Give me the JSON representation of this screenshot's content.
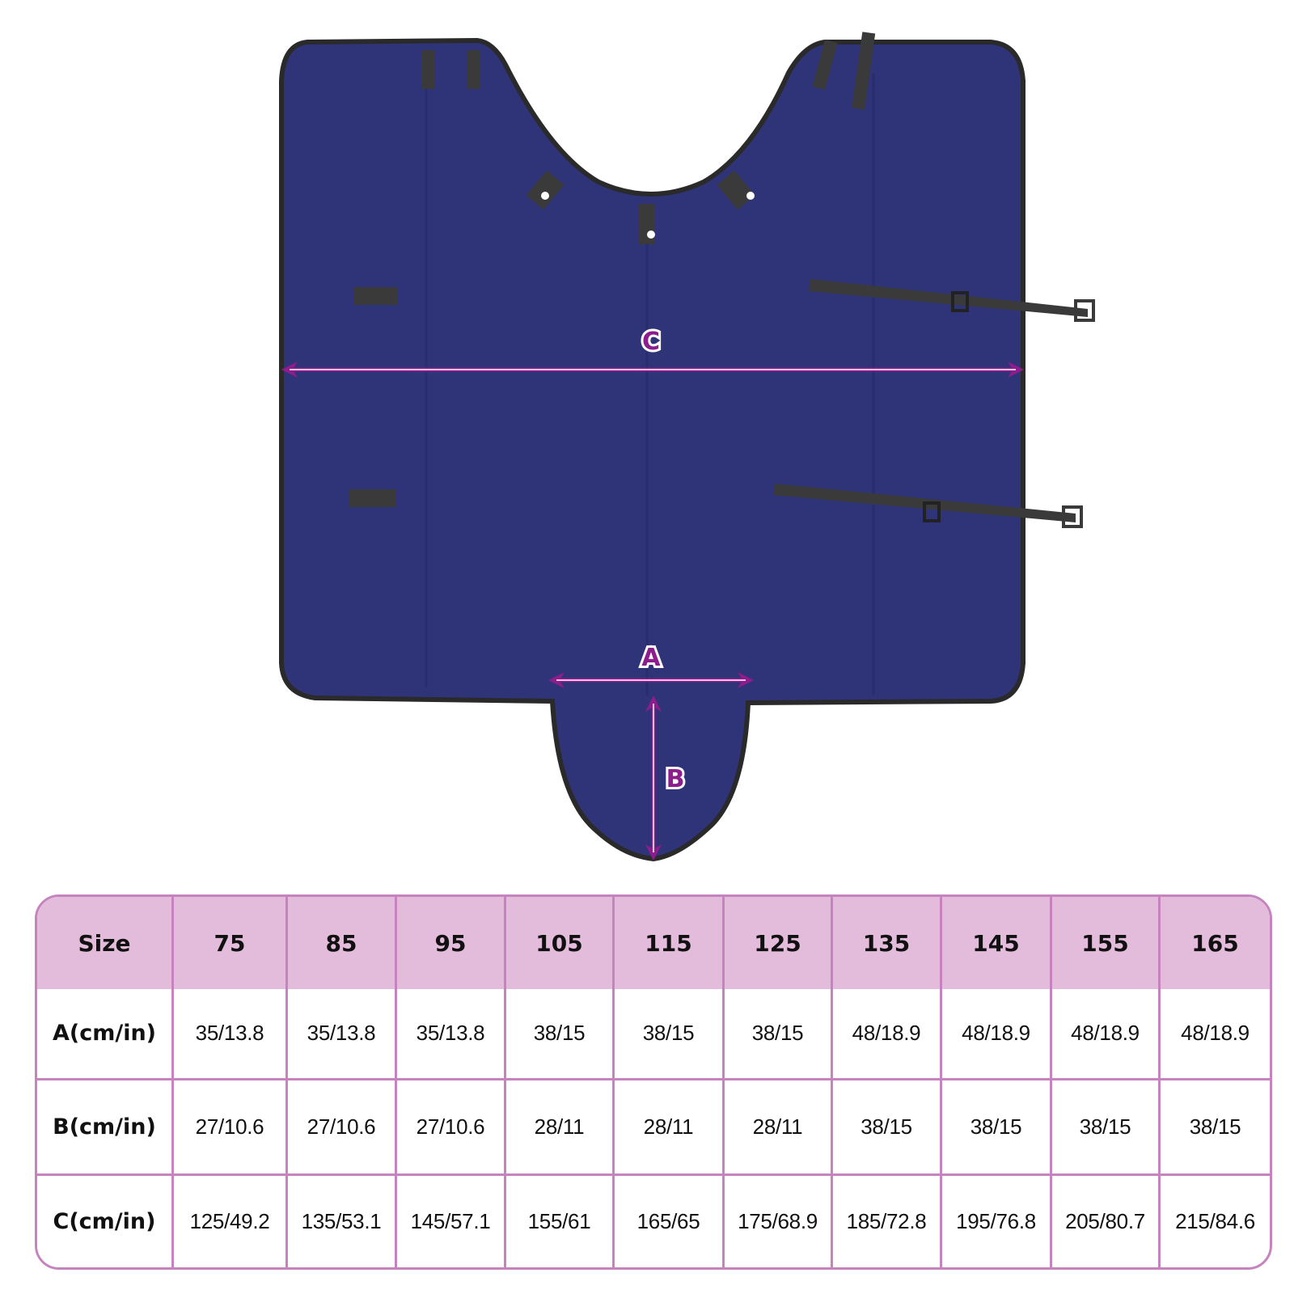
{
  "diagram": {
    "labels": {
      "c": "C",
      "a": "A",
      "b": "B"
    },
    "colors": {
      "blanket": "#2f3478",
      "trim": "#2a2a2a",
      "strap": "#3a3a3a",
      "arrow": "#8d1c8d"
    }
  },
  "table": {
    "header": [
      "Size",
      "75",
      "85",
      "95",
      "105",
      "115",
      "125",
      "135",
      "145",
      "155",
      "165"
    ],
    "rows": [
      {
        "label": "A(cm/in)",
        "values": [
          "35/13.8",
          "35/13.8",
          "35/13.8",
          "38/15",
          "38/15",
          "38/15",
          "48/18.9",
          "48/18.9",
          "48/18.9",
          "48/18.9"
        ]
      },
      {
        "label": "B(cm/in)",
        "values": [
          "27/10.6",
          "27/10.6",
          "27/10.6",
          "28/11",
          "28/11",
          "28/11",
          "38/15",
          "38/15",
          "38/15",
          "38/15"
        ]
      },
      {
        "label": "C(cm/in)",
        "values": [
          "125/49.2",
          "135/53.1",
          "145/57.1",
          "155/61",
          "165/65",
          "175/68.9",
          "185/72.8",
          "195/76.8",
          "205/80.7",
          "215/84.6"
        ]
      }
    ],
    "colors": {
      "header_bg": "#e4bcdb",
      "border": "#c783bf"
    }
  }
}
